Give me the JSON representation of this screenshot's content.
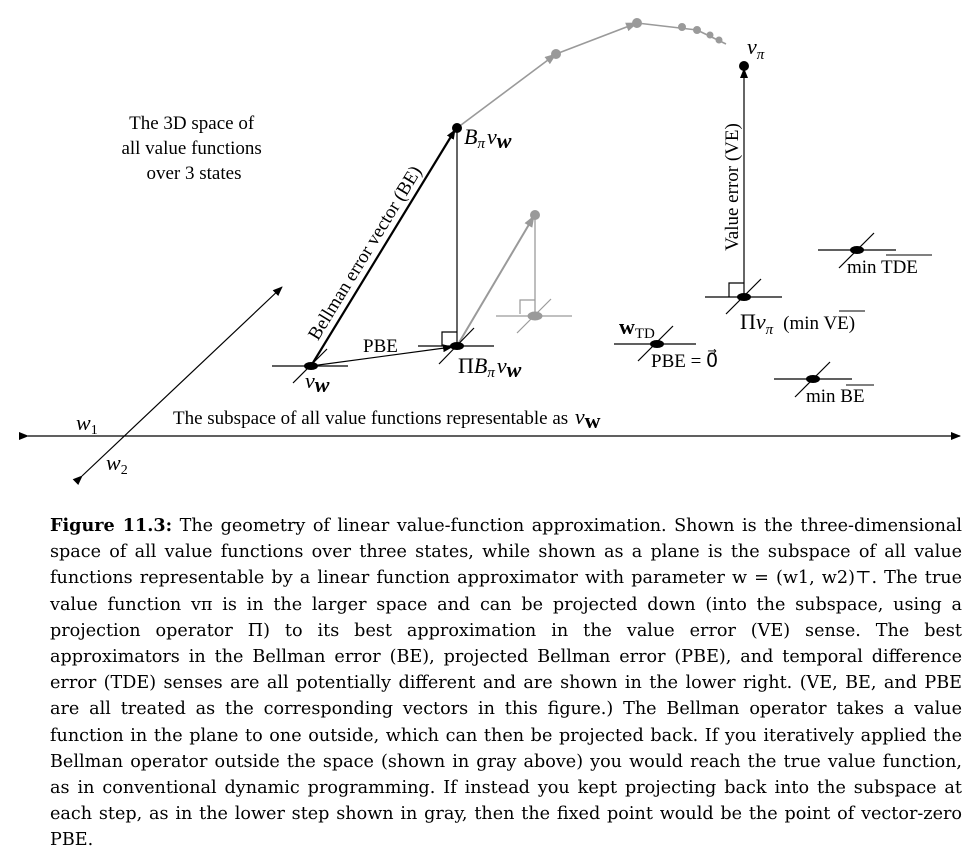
{
  "diagram": {
    "space_label": [
      "The 3D space of",
      "all value functions",
      "over 3 states"
    ],
    "subspace_label": "The subspace of all value functions representable as",
    "axis_w1": "w",
    "axis_w1_sub": "1",
    "axis_w2": "w",
    "axis_w2_sub": "2",
    "v": "v",
    "w_bold": "w",
    "pi": "π",
    "B": "B",
    "Pi_upper": "Π",
    "be_vector_label": "Bellman error vector (BE)",
    "ve_label": "Value error (VE)",
    "pbe_label": "PBE",
    "min_ve": "(min VE)",
    "min_tde": "min TDE",
    "min_be": "min BE",
    "w_td": "w",
    "w_td_sub": "TD",
    "pbe_zero": "PBE = 0⃗"
  },
  "caption": {
    "figure_label": "Figure 11.3:",
    "text": "The geometry of linear value-function approximation. Shown is the three-dimensional space of all value functions over three states, while shown as a plane is the subspace of all value functions representable by a linear function approximator with parameter w = (w1, w2)⊤. The true value function vπ is in the larger space and can be projected down (into the subspace, using a projection operator Π) to its best approximation in the value error (VE) sense. The best approximators in the Bellman error (BE), projected Bellman error (PBE), and temporal difference error (TDE) senses are all potentially different and are shown in the lower right. (VE, BE, and PBE are all treated as the corresponding vectors in this figure.) The Bellman operator takes a value function in the plane to one outside, which can then be projected back. If you iteratively applied the Bellman operator outside the space (shown in gray above) you would reach the true value function, as in conventional dynamic programming. If instead you kept projecting back into the subspace at each step, as in the lower step shown in gray, then the fixed point would be the point of vector-zero PBE."
  }
}
